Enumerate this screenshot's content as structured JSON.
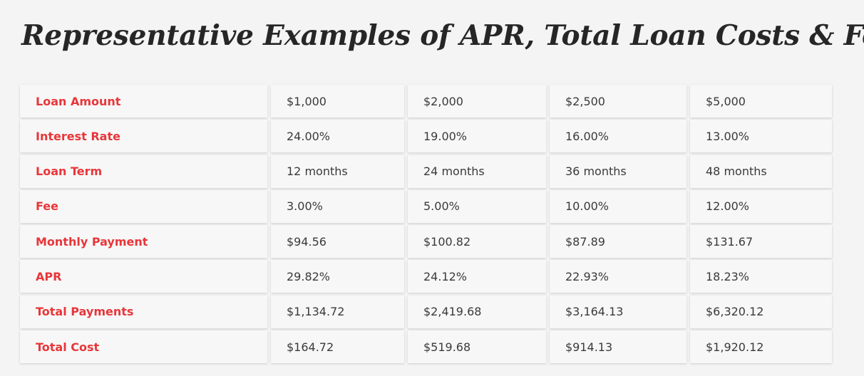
{
  "title": "Representative Examples of APR, Total Loan Costs & Fee",
  "table": {
    "rows": [
      {
        "label": "Loan Amount",
        "values": [
          "$1,000",
          "$2,000",
          "$2,500",
          "$5,000"
        ]
      },
      {
        "label": "Interest Rate",
        "values": [
          "24.00%",
          "19.00%",
          "16.00%",
          "13.00%"
        ]
      },
      {
        "label": "Loan Term",
        "values": [
          "12 months",
          "24 months",
          "36 months",
          "48 months"
        ]
      },
      {
        "label": "Fee",
        "values": [
          "3.00%",
          "5.00%",
          "10.00%",
          "12.00%"
        ]
      },
      {
        "label": "Monthly Payment",
        "values": [
          "$94.56",
          "$100.82",
          "$87.89",
          "$131.67"
        ]
      },
      {
        "label": "APR",
        "values": [
          "29.82%",
          "24.12%",
          "22.93%",
          "18.23%"
        ]
      },
      {
        "label": "Total Payments",
        "values": [
          "$1,134.72",
          "$2,419.68",
          "$3,164.13",
          "$6,320.12"
        ]
      },
      {
        "label": "Total Cost",
        "values": [
          "$164.72",
          "$519.68",
          "$914.13",
          "$1,920.12"
        ]
      }
    ]
  },
  "colors": {
    "label_red": "#e8363a",
    "text_dark": "#262626",
    "background": "#f4f4f4"
  }
}
